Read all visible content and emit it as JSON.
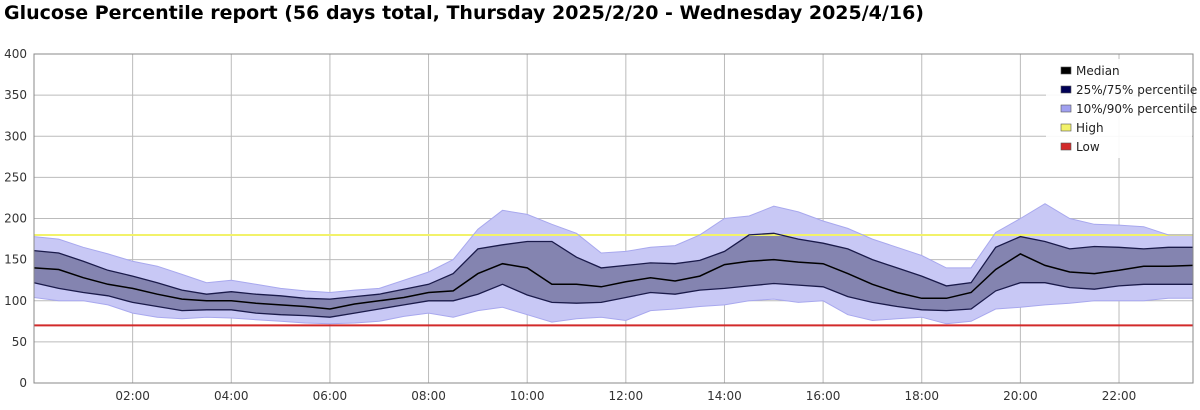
{
  "title": "Glucose Percentile report (56 days total, Thursday 2025/2/20 - Wednesday 2025/4/16)",
  "chart_data": {
    "type": "area",
    "x": [
      0,
      0.5,
      1,
      1.5,
      2,
      2.5,
      3,
      3.5,
      4,
      4.5,
      5,
      5.5,
      6,
      6.5,
      7,
      7.5,
      8,
      8.5,
      9,
      9.5,
      10,
      10.5,
      11,
      11.5,
      12,
      12.5,
      13,
      13.5,
      14,
      14.5,
      15,
      15.5,
      16,
      16.5,
      17,
      17.5,
      18,
      18.5,
      19,
      19.5,
      20,
      20.5,
      21,
      21.5,
      22,
      22.5,
      23,
      23.5
    ],
    "xlim": [
      0,
      23.5
    ],
    "ylim": [
      0,
      400
    ],
    "yticks": [
      0,
      50,
      100,
      150,
      200,
      250,
      300,
      350,
      400
    ],
    "xtick_labels": [
      "02:00",
      "04:00",
      "06:00",
      "08:00",
      "10:00",
      "12:00",
      "14:00",
      "16:00",
      "18:00",
      "20:00",
      "22:00"
    ],
    "xtick_values": [
      2,
      4,
      6,
      8,
      10,
      12,
      14,
      16,
      18,
      20,
      22
    ],
    "high": 180,
    "low": 70,
    "median": [
      140,
      138,
      128,
      120,
      115,
      108,
      102,
      100,
      100,
      97,
      95,
      93,
      90,
      96,
      100,
      104,
      110,
      112,
      133,
      145,
      140,
      120,
      120,
      117,
      123,
      128,
      124,
      130,
      144,
      148,
      150,
      147,
      145,
      133,
      120,
      110,
      103,
      103,
      110,
      138,
      157,
      143,
      135,
      133,
      137,
      142,
      142,
      143
    ],
    "p25": [
      122,
      115,
      110,
      106,
      98,
      93,
      88,
      89,
      89,
      85,
      83,
      82,
      80,
      85,
      90,
      95,
      100,
      100,
      108,
      120,
      107,
      98,
      97,
      98,
      104,
      110,
      108,
      113,
      115,
      118,
      121,
      119,
      117,
      105,
      98,
      93,
      89,
      88,
      90,
      112,
      122,
      122,
      116,
      114,
      118,
      120,
      120,
      120
    ],
    "p75": [
      161,
      158,
      148,
      137,
      130,
      122,
      113,
      108,
      111,
      108,
      106,
      103,
      102,
      105,
      108,
      114,
      120,
      133,
      163,
      168,
      172,
      172,
      153,
      140,
      143,
      146,
      145,
      149,
      160,
      180,
      182,
      175,
      170,
      163,
      150,
      140,
      130,
      118,
      122,
      165,
      178,
      172,
      163,
      166,
      165,
      163,
      165,
      165
    ],
    "p10": [
      104,
      100,
      100,
      95,
      85,
      80,
      78,
      80,
      79,
      77,
      75,
      73,
      72,
      73,
      75,
      81,
      85,
      80,
      88,
      92,
      83,
      74,
      78,
      80,
      76,
      88,
      90,
      93,
      95,
      100,
      102,
      98,
      100,
      83,
      76,
      78,
      80,
      72,
      75,
      90,
      92,
      95,
      97,
      100,
      100,
      100,
      103,
      103
    ],
    "p90": [
      178,
      175,
      165,
      157,
      148,
      142,
      132,
      122,
      125,
      120,
      115,
      112,
      110,
      113,
      115,
      125,
      135,
      150,
      187,
      210,
      205,
      193,
      182,
      158,
      160,
      165,
      167,
      180,
      200,
      203,
      215,
      208,
      197,
      188,
      175,
      165,
      155,
      140,
      140,
      183,
      200,
      218,
      200,
      193,
      192,
      190,
      180,
      180
    ],
    "legend": {
      "position": "top-right",
      "entries": [
        {
          "label": "Median",
          "color": "#000000"
        },
        {
          "label": "25%/75% percentile",
          "color": "#000055"
        },
        {
          "label": "10%/90% percentile",
          "color": "#a0a0f0"
        },
        {
          "label": "High",
          "color": "#f2f26a"
        },
        {
          "label": "Low",
          "color": "#d22a2a"
        }
      ]
    },
    "colors": {
      "p10_90_fill": "#c8c8f5",
      "p10_90_edge": "#a8a8ee",
      "p25_75_fill": "#8484b0",
      "median_line": "#000000",
      "iqr_edge": "#1a1a4a",
      "high_line": "#f2f26a",
      "low_line": "#d22a2a",
      "grid": "#bbbbbb"
    }
  }
}
